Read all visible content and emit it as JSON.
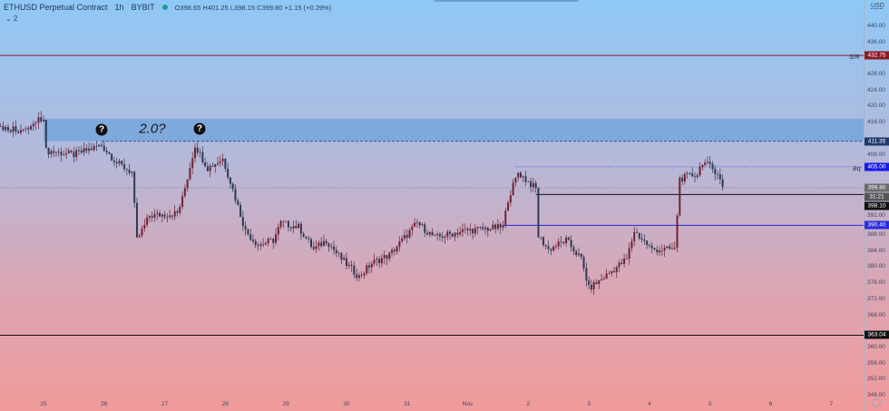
{
  "header": {
    "symbol": "ETHUSD Perpetual Contract",
    "interval": "1h",
    "exchange": "BYBIT",
    "ohlc": "O398.65 H401.25 L398.15 C399.80 +1.15 (+0.29%)",
    "collapse_label": "⌄ 2",
    "status_color": "#1aa08a"
  },
  "price_axis": {
    "currency": "USD",
    "settings_icon": "gear-icon"
  },
  "annotations": {
    "question_icon": "question-circle-icon",
    "text": "2.0?",
    "sr_label": "S/R",
    "bq_label": "Bq"
  },
  "chart_data": {
    "type": "candlestick",
    "title": "ETHUSD Perpetual Contract · 1h · BYBIT",
    "x_ticks": [
      "25",
      "26",
      "27",
      "28",
      "29",
      "30",
      "31",
      "Nov",
      "2",
      "3",
      "4",
      "5",
      "6",
      "7"
    ],
    "y_ticks": [
      "440.00",
      "436.00",
      "428.00",
      "424.00",
      "420.00",
      "416.00",
      "408.00",
      "392.00",
      "388.00",
      "384.00",
      "380.00",
      "376.00",
      "372.00",
      "368.00",
      "360.00",
      "356.00",
      "352.00",
      "348.00"
    ],
    "ylim": [
      348,
      440
    ],
    "colors": {
      "up": "#6e2233",
      "down": "#2b3a52"
    },
    "price_path": [
      [
        "10-24 07:00",
        415.0
      ],
      [
        "10-24 17:00",
        414.0
      ],
      [
        "10-25 00:00",
        417.6
      ],
      [
        "10-25 01:00",
        409.0
      ],
      [
        "10-25 12:00",
        408.0
      ],
      [
        "10-25 23:00",
        410.4
      ],
      [
        "10-26 05:00",
        406.0
      ],
      [
        "10-26 11:00",
        403.6
      ],
      [
        "10-26 13:00",
        386.7
      ],
      [
        "10-26 18:00",
        392.8
      ],
      [
        "10-27 05:00",
        393.4
      ],
      [
        "10-27 07:00",
        397.0
      ],
      [
        "10-27 12:00",
        410.4
      ],
      [
        "10-27 17:00",
        404.7
      ],
      [
        "10-27 23:00",
        407.0
      ],
      [
        "10-28 02:00",
        401.3
      ],
      [
        "10-28 08:00",
        389.0
      ],
      [
        "10-28 13:00",
        385.5
      ],
      [
        "10-28 19:00",
        386.7
      ],
      [
        "10-28 22:00",
        391.0
      ],
      [
        "10-29 05:00",
        390.0
      ],
      [
        "10-29 11:00",
        384.4
      ],
      [
        "10-29 16:00",
        386.7
      ],
      [
        "10-29 22:00",
        382.0
      ],
      [
        "10-30 05:00",
        377.6
      ],
      [
        "10-30 10:00",
        381.0
      ],
      [
        "10-30 17:00",
        383.0
      ],
      [
        "10-31 04:00",
        391.0
      ],
      [
        "10-31 11:00",
        387.3
      ],
      [
        "10-31 22:00",
        389.0
      ],
      [
        "11-01 14:00",
        390.0
      ],
      [
        "11-01 16:00",
        397.0
      ],
      [
        "11-01 20:00",
        403.6
      ],
      [
        "11-02 03:00",
        399.5
      ],
      [
        "11-02 04:00",
        387.8
      ],
      [
        "11-02 08:00",
        384.4
      ],
      [
        "11-02 15:00",
        386.7
      ],
      [
        "11-02 21:00",
        382.0
      ],
      [
        "11-03 00:00",
        374.7
      ],
      [
        "11-03 04:00",
        376.5
      ],
      [
        "11-03 15:00",
        382.0
      ],
      [
        "11-03 18:00",
        389.0
      ],
      [
        "11-04 01:00",
        384.4
      ],
      [
        "11-04 10:00",
        384.4
      ],
      [
        "11-04 12:00",
        402.0
      ],
      [
        "11-04 19:00",
        403.2
      ],
      [
        "11-04 21:00",
        406.3
      ],
      [
        "11-05 03:00",
        403.6
      ],
      [
        "11-05 05:00",
        399.8
      ]
    ],
    "zone": {
      "low": 411.35,
      "high": 417.0,
      "from": "10-25 00:00"
    },
    "levels": [
      {
        "price": 432.75,
        "label": "432.75",
        "color": "#8b1a24",
        "style": "solid",
        "from": null
      },
      {
        "price": 411.35,
        "label": "411.35",
        "color": "#1e3a6e",
        "style": "dashed",
        "from": "10-25 23:00"
      },
      {
        "price": 405.0,
        "label": "405.00",
        "color": "#1a1ae6",
        "style": "dotted",
        "from": "11-01 19:00"
      },
      {
        "price": 399.8,
        "label": "399.80",
        "color": "#6b6b6b",
        "style": "dotted",
        "from": null
      },
      {
        "price": 398.1,
        "label": "398.10",
        "color": "#111111",
        "style": "solid",
        "from": "11-02 03:00"
      },
      {
        "price": 390.4,
        "label": "390.40",
        "color": "#2a2ae0",
        "style": "solid",
        "from": "11-01 14:00"
      },
      {
        "price": 363.04,
        "label": "363.04",
        "color": "#111111",
        "style": "solid",
        "from": null
      }
    ],
    "countdown": "31:21"
  }
}
